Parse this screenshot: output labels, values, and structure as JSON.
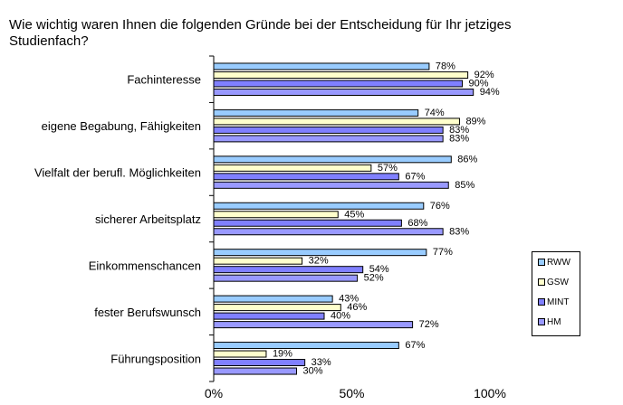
{
  "chart_data": {
    "type": "bar",
    "orientation": "horizontal",
    "title": "Wie wichtig waren Ihnen die folgenden Gründe bei der Entscheidung  für Ihr jetziges Studienfach?",
    "categories": [
      "Fachinteresse",
      "eigene Begabung, Fähigkeiten",
      "Vielfalt der berufl. Möglichkeiten",
      "sicherer Arbeitsplatz",
      "Einkommenschancen",
      "fester Berufswunsch",
      "Führungsposition"
    ],
    "series": [
      {
        "name": "RWW",
        "color": "#99ccff",
        "values": [
          78,
          74,
          86,
          76,
          77,
          43,
          67
        ]
      },
      {
        "name": "GSW",
        "color": "#ffffcc",
        "values": [
          92,
          89,
          57,
          45,
          32,
          46,
          19
        ]
      },
      {
        "name": "MINT",
        "color": "#8080ff",
        "values": [
          90,
          83,
          67,
          68,
          54,
          40,
          33
        ]
      },
      {
        "name": "HM",
        "color": "#9999ff",
        "values": [
          94,
          83,
          85,
          83,
          52,
          72,
          30
        ]
      }
    ],
    "value_labels": [
      [
        "78%",
        "74%",
        "86%",
        "76%",
        "77%",
        "43%",
        "67%"
      ],
      [
        "92%",
        "89%",
        "57%",
        "45%",
        "32%",
        "46%",
        "19%"
      ],
      [
        "90%",
        "83%",
        "67%",
        "68%",
        "54%",
        "40%",
        "33%"
      ],
      [
        "94%",
        "83%",
        "85%",
        "83%",
        "52%",
        "72%",
        "30%"
      ]
    ],
    "xlim": [
      0,
      100
    ],
    "xticks": [
      "0%",
      "50%",
      "100%"
    ],
    "grid": false,
    "legend_position": "right"
  }
}
